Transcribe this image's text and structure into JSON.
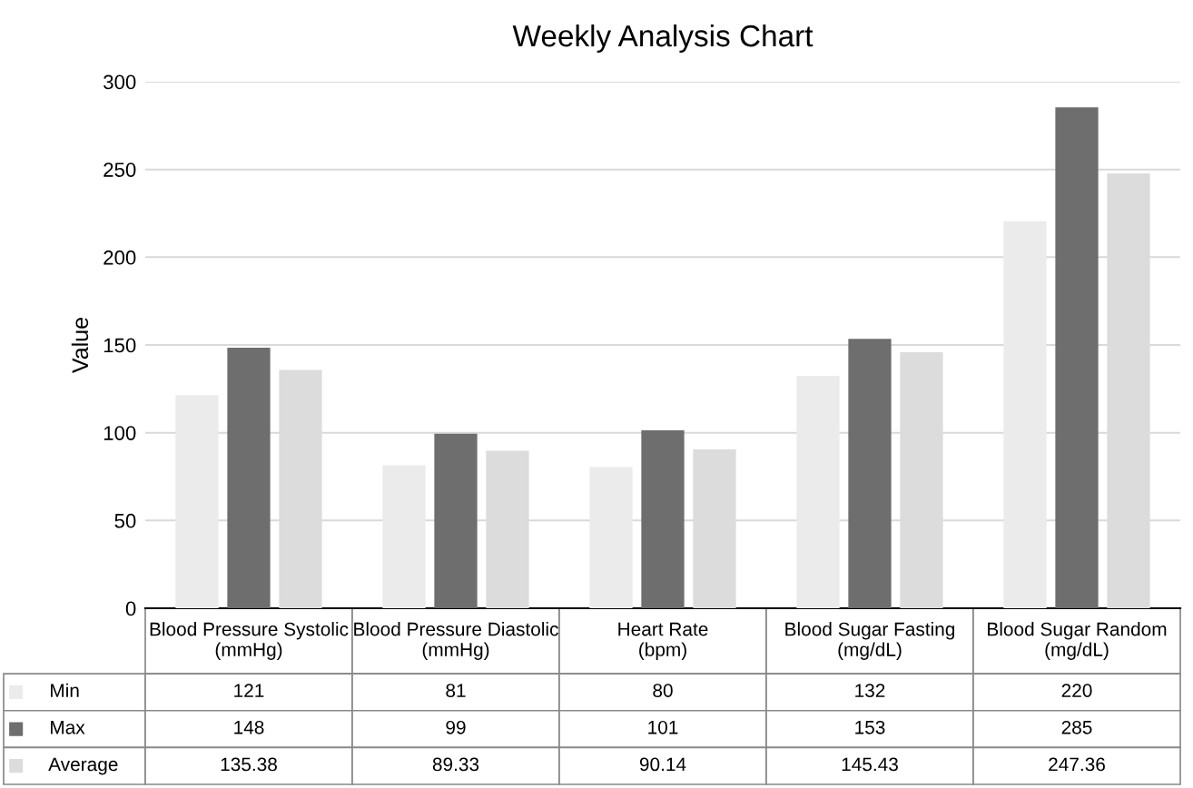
{
  "chart_data": {
    "type": "bar",
    "title": "Weekly Analysis Chart",
    "ylabel": "Value",
    "categories": [
      "Blood Pressure Systolic\n(mmHg)",
      "Blood Pressure Diastolic\n(mmHg)",
      "Heart Rate\n(bpm)",
      "Blood Sugar Fasting\n(mg/dL)",
      "Blood Sugar Random\n(mg/dL)"
    ],
    "series": [
      {
        "name": "Min",
        "color": "#ebebeb",
        "values": [
          121,
          81,
          80,
          132,
          220
        ]
      },
      {
        "name": "Max",
        "color": "#6e6e6e",
        "values": [
          148,
          99,
          101,
          153,
          285
        ]
      },
      {
        "name": "Average",
        "color": "#dcdcdc",
        "values": [
          135.38,
          89.33,
          90.14,
          145.43,
          247.36
        ]
      }
    ],
    "ylim": [
      0,
      300
    ],
    "yticks": [
      0,
      50,
      100,
      150,
      200,
      250,
      300
    ],
    "grid": "y",
    "data_labels": true,
    "legend": "bottom"
  }
}
